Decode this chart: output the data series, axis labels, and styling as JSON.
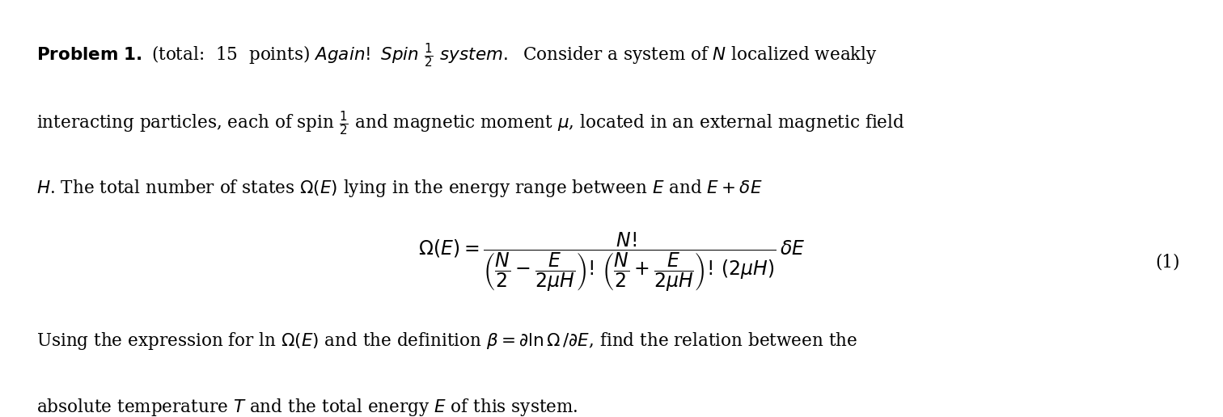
{
  "background_color": "#ffffff",
  "text_color": "#000000",
  "fig_width": 15.12,
  "fig_height": 5.16,
  "dpi": 100,
  "line1_bold": "Problem 1.",
  "line1_normal": " (total: 15 points) ",
  "line1_italic": "Again! Spin ½ system.",
  "line1_rest": " Consider a system of $N$ localized weakly",
  "line2": "interacting particles, each of spin ½ and magnetic moment $\\mu$, located in an external magnetic field",
  "line3": "$H$. The total number of states $\\Omega(E)$ lying in the energy range between $E$ and $E + \\delta E$",
  "equation": "$\\Omega(E) = \\dfrac{N!}{\\left(\\dfrac{N}{2} - \\dfrac{E}{2\\mu H}\\right)! \\left(\\dfrac{N}{2} + \\dfrac{E}{2\\mu H}\\right)! } \\dfrac{\\delta E}{(2\\mu H)}$",
  "eq_number": "(1)",
  "line4": "Using the expression for ln $\\Omega(E)$ and the definition $\\beta = \\partial \\ln \\Omega \\, / \\partial E$, find the relation between the",
  "line5": "absolute temperature $T$ and the total energy $E$ of this system.",
  "font_size_main": 15.5,
  "font_size_eq": 14,
  "font_size_eqnum": 15.5
}
